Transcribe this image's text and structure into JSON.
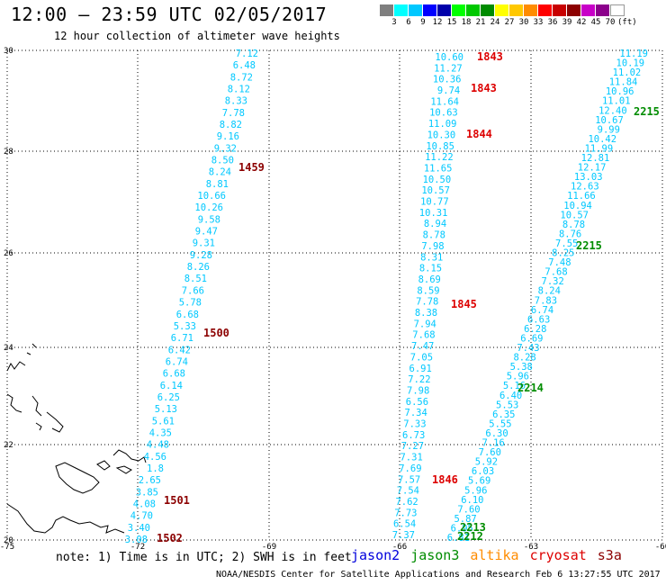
{
  "title": "12:00 – 23:59 UTC 02/05/2017",
  "subtitle": "12 hour collection of altimeter wave heights",
  "legend": {
    "colors": [
      "#7f7f7f",
      "#00ffff",
      "#00c8ff",
      "#0000ff",
      "#0000aa",
      "#00ff00",
      "#00c800",
      "#008c00",
      "#ffff00",
      "#ffc800",
      "#ff8c00",
      "#ff0000",
      "#c80000",
      "#8c0000",
      "#c800c8",
      "#8c008c",
      "#ffffff"
    ],
    "labels": [
      "3",
      "6",
      "9",
      "12",
      "15",
      "18",
      "21",
      "24",
      "27",
      "30",
      "33",
      "36",
      "39",
      "42",
      "45",
      "70",
      "(ft)"
    ]
  },
  "axes": {
    "x_ticks": [
      "-75",
      "-72",
      "-69",
      "-66",
      "-63",
      "-60"
    ],
    "y_ticks": [
      "30",
      "28",
      "26",
      "24",
      "22",
      "20"
    ]
  },
  "tracks": {
    "track_a": {
      "color": "#00c8ff",
      "values": [
        "7.12",
        "6.48",
        "8.72",
        "8.12",
        "8.33",
        "7.78",
        "8.82",
        "9.16",
        "9.32",
        "8.50",
        "8.24",
        "8.81",
        "10.66",
        "10.26",
        "9.58",
        "9.47",
        "9.31",
        "9.28",
        "8.26",
        "8.51",
        "7.66",
        "5.78",
        "6.68",
        "5.33",
        "6.71",
        "6.42",
        "6.74",
        "6.68",
        "6.14",
        "6.25",
        "5.13",
        "5.61",
        "4.35",
        "4.48",
        "4.56",
        "1.8",
        "2.65",
        "3.85",
        "4.08",
        "4.70",
        "3.40",
        "3.08"
      ]
    },
    "track_b": {
      "color": "#00c8ff",
      "values": [
        "10.60",
        "11.27",
        "10.36",
        "9.74",
        "11.64",
        "10.63",
        "11.09",
        "10.30",
        "10.85",
        "11.22",
        "11.65",
        "10.50",
        "10.57",
        "10.77",
        "10.31",
        "8.94",
        "8.78",
        "7.98",
        "8.31",
        "8.15",
        "8.69",
        "8.59",
        "7.78",
        "8.38",
        "7.94",
        "7.68",
        "7.47",
        "7.05",
        "6.91",
        "7.22",
        "7.98",
        "6.56",
        "7.34",
        "7.33",
        "6.73",
        "7.27",
        "7.31",
        "7.69",
        "7.57",
        "7.54",
        "7.62",
        "7.73",
        "6.54",
        "7.37"
      ]
    },
    "track_c": {
      "color": "#00c8ff",
      "values": [
        "11.19",
        "10.19",
        "11.02",
        "11.84",
        "10.96",
        "11.01",
        "12.40",
        "10.67",
        "9.99",
        "10.42",
        "11.99",
        "12.81",
        "12.17",
        "13.03",
        "12.63",
        "11.66",
        "10.94",
        "10.57",
        "8.78",
        "8.76",
        "7.55",
        "8.25",
        "7.48",
        "7.68",
        "7.32",
        "8.24",
        "7.83",
        "6.74",
        "6.63",
        "6.28",
        "6.69",
        "7.43",
        "8.28",
        "5.38",
        "5.96",
        "5.16",
        "6.40",
        "5.53",
        "6.35",
        "5.55",
        "6.30",
        "7.16",
        "7.60",
        "5.92",
        "6.03",
        "5.69",
        "5.96",
        "6.10",
        "7.60",
        "5.87",
        "6.95",
        "6.81"
      ]
    }
  },
  "passes": [
    {
      "label": "1843",
      "satellite": "jason2"
    },
    {
      "label": "1843",
      "satellite": "jason2"
    },
    {
      "label": "1844",
      "satellite": "jason2"
    },
    {
      "label": "1845",
      "satellite": "jason2"
    },
    {
      "label": "1846",
      "satellite": "jason2"
    },
    {
      "label": "2215",
      "satellite": "jason3"
    },
    {
      "label": "2215",
      "satellite": "jason3"
    },
    {
      "label": "2214",
      "satellite": "jason3"
    },
    {
      "label": "2213",
      "satellite": "jason3"
    },
    {
      "label": "2212",
      "satellite": "jason3"
    },
    {
      "label": "1459",
      "satellite": "cryosat"
    },
    {
      "label": "1500",
      "satellite": "cryosat"
    },
    {
      "label": "1501",
      "satellite": "cryosat"
    },
    {
      "label": "1502",
      "satellite": "cryosat"
    }
  ],
  "footer": {
    "note": "note: 1) Time is in UTC; 2) SWH is in feet",
    "satellites": [
      {
        "name": "jason2",
        "color": "#0000dd"
      },
      {
        "name": "jason3",
        "color": "#008c00"
      },
      {
        "name": "altika",
        "color": "#ff8c00"
      },
      {
        "name": "cryosat",
        "color": "#dd0000"
      },
      {
        "name": "s3a",
        "color": "#8c0000"
      }
    ],
    "credit": "NOAA/NESDIS Center for Satellite Applications and Research   Feb  6 13:27:55 UTC 2017"
  }
}
